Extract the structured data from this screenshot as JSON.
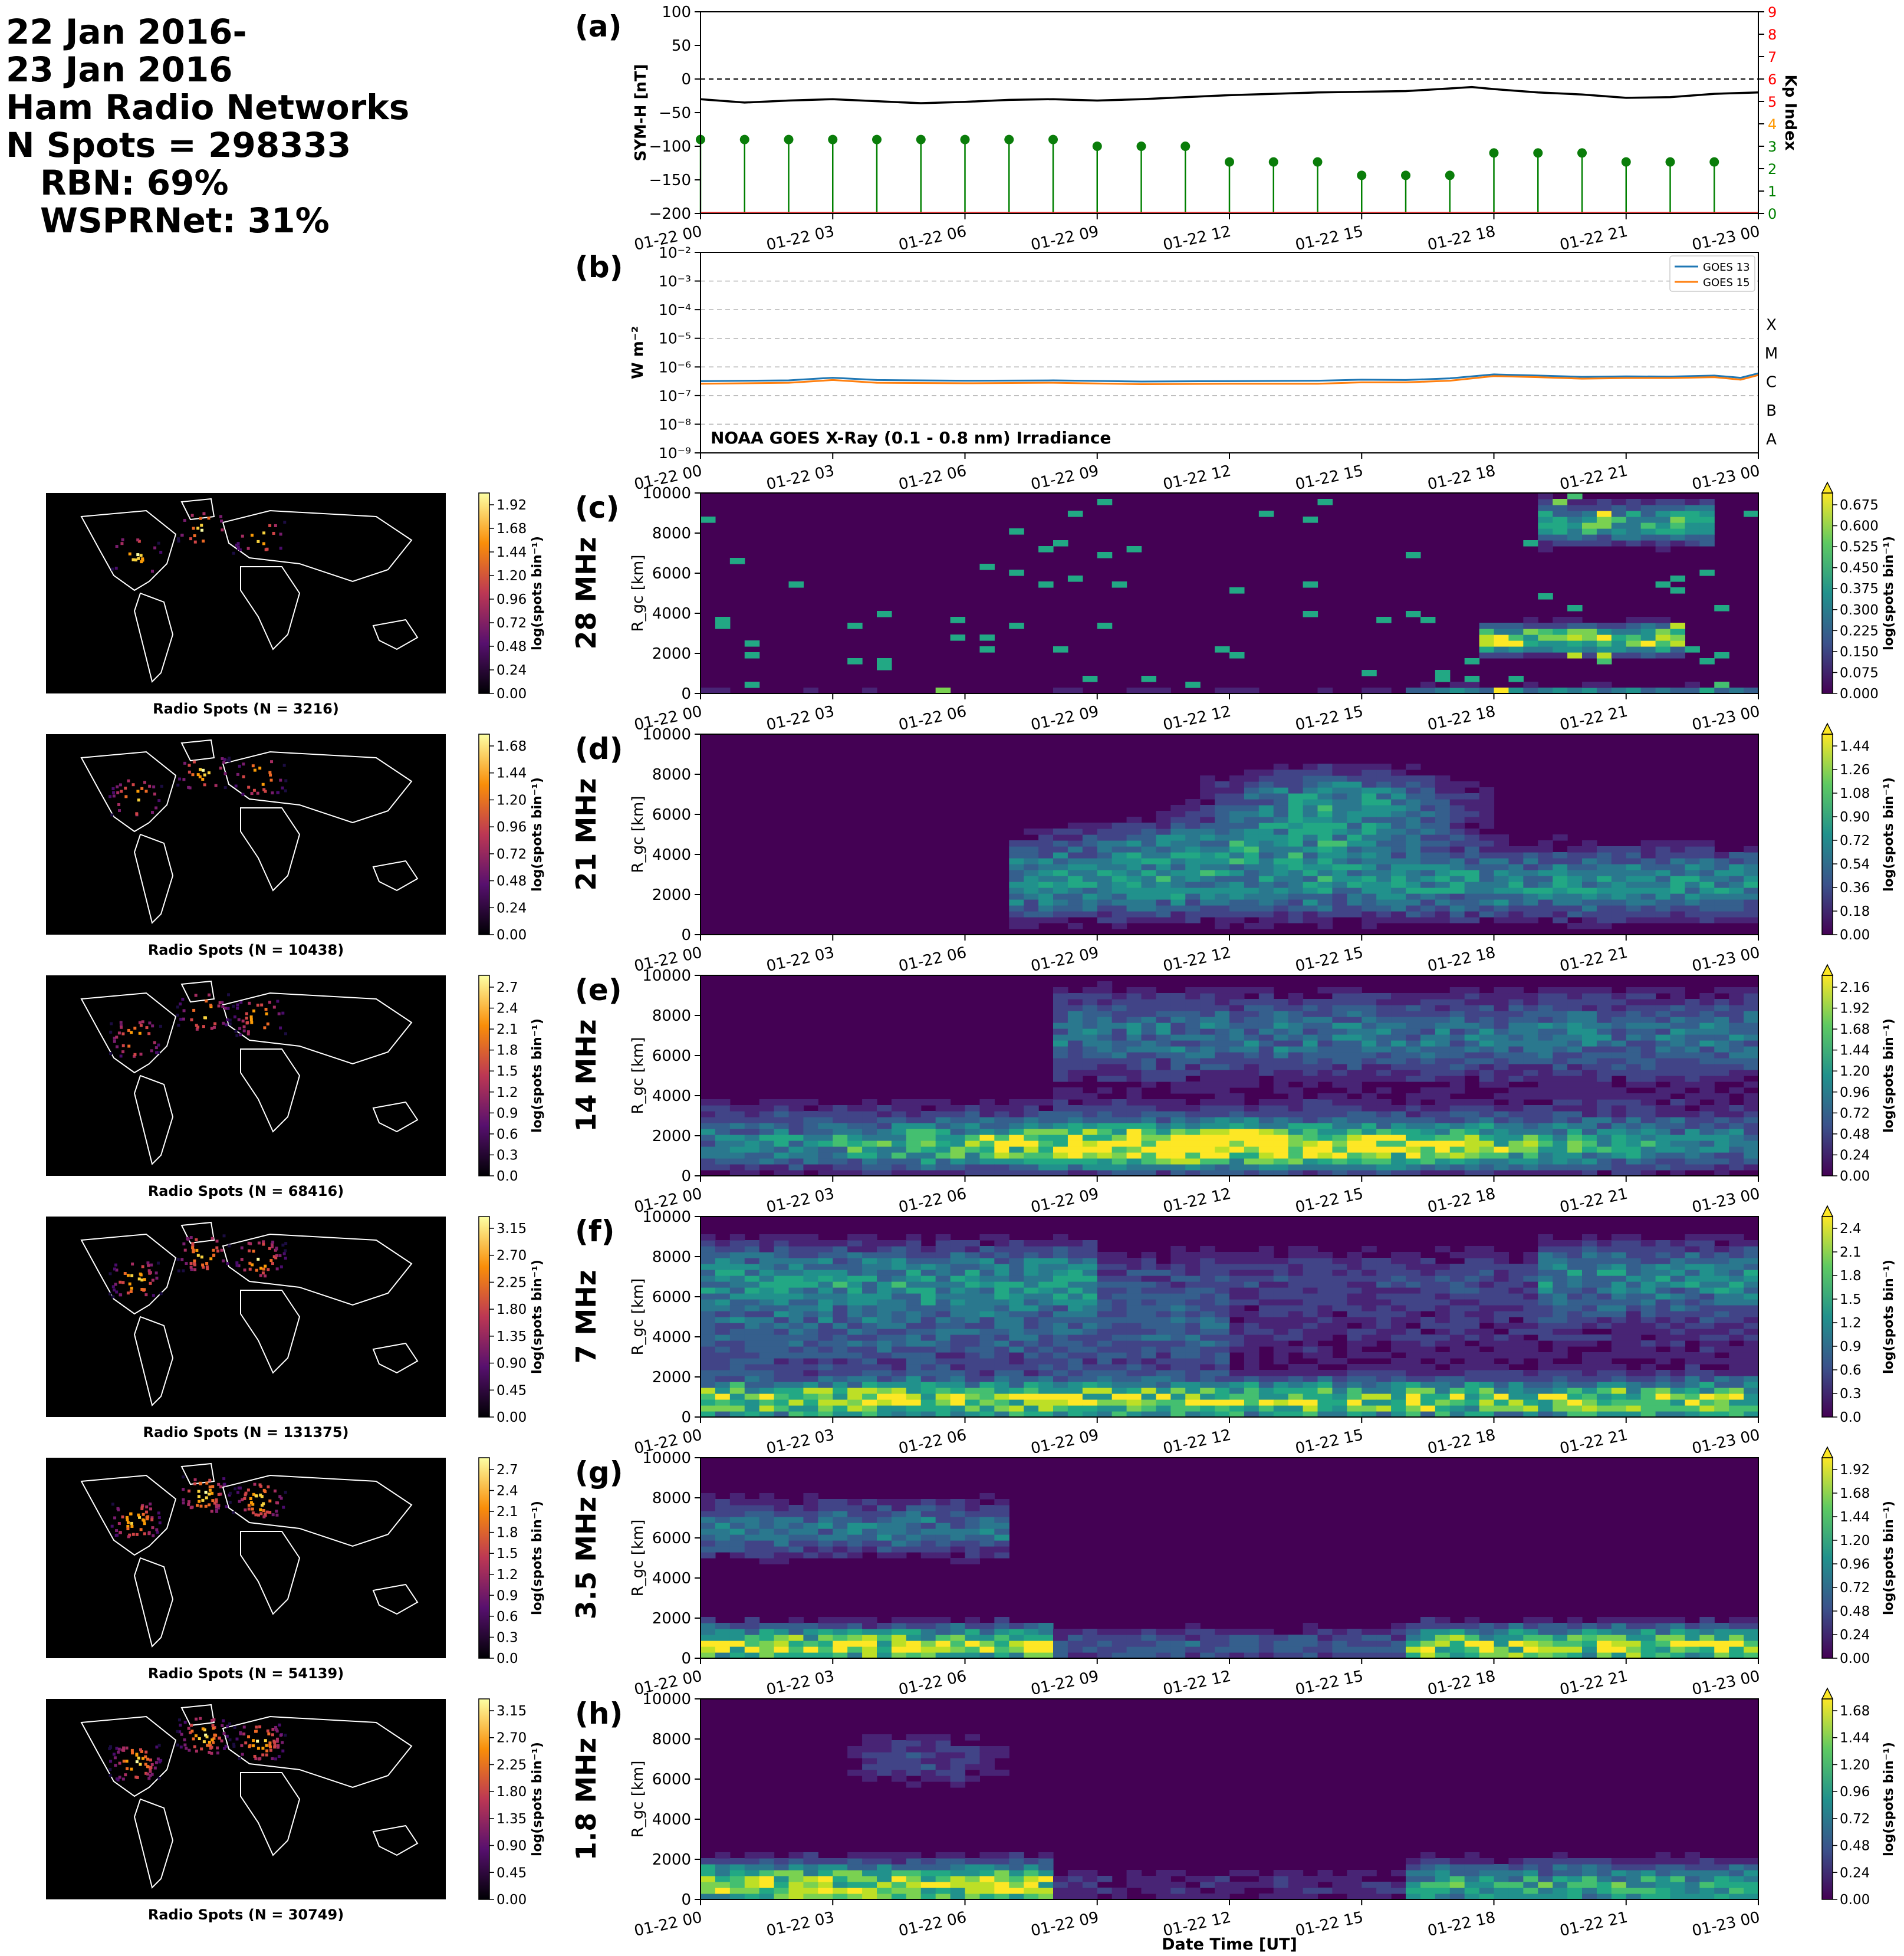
{
  "header": {
    "line1": "22 Jan 2016-",
    "line2": "23 Jan 2016",
    "line3": "Ham Radio Networks",
    "line4": "N Spots = 298333",
    "line5": "RBN: 69%",
    "line6": "WSPRNet: 31%"
  },
  "time_ticks": [
    "01-22 00",
    "01-22 03",
    "01-22 06",
    "01-22 09",
    "01-22 12",
    "01-22 15",
    "01-22 18",
    "01-22 21",
    "01-23 00"
  ],
  "xlabel": "Date Time [UT]",
  "colors": {
    "symh": "#000000",
    "kp_stem": "#008000",
    "kp_marker": "#0a7d0a",
    "goes13": "#1f77b4",
    "goes15": "#ff7f0e",
    "kp_red": "#ff0000",
    "kp_orange": "#ff9900",
    "kp_green": "#008000"
  },
  "chart_data": [
    {
      "type": "line",
      "panel": "(a)",
      "ylabel": "SYM-H [nT]",
      "y2label": "Kp Index",
      "ylim": [
        -200,
        100
      ],
      "yticks": [
        100,
        50,
        0,
        -50,
        -100,
        -150,
        -200
      ],
      "y2lim": [
        0,
        9
      ],
      "y2ticks": [
        0,
        1,
        2,
        3,
        4,
        5,
        6,
        7,
        8,
        9
      ],
      "reference_line": 0,
      "symh": {
        "x_hours": [
          0,
          1,
          2,
          3,
          4,
          5,
          6,
          7,
          8,
          9,
          10,
          11,
          12,
          13,
          14,
          15,
          16,
          17,
          17.5,
          18,
          19,
          20,
          21,
          22,
          23,
          24
        ],
        "values": [
          -30,
          -35,
          -32,
          -30,
          -33,
          -36,
          -34,
          -31,
          -30,
          -32,
          -30,
          -27,
          -24,
          -22,
          -20,
          -19,
          -18,
          -14,
          -12,
          -15,
          -20,
          -23,
          -28,
          -27,
          -22,
          -20
        ]
      },
      "kp": {
        "x_hours": [
          0,
          1,
          2,
          3,
          4,
          5,
          6,
          7,
          8,
          9,
          10,
          11,
          12,
          13,
          14,
          15,
          16,
          17,
          18,
          19,
          20,
          21,
          22,
          23
        ],
        "values": [
          3.3,
          3.3,
          3.3,
          3.3,
          3.3,
          3.3,
          3.3,
          3.3,
          3.3,
          3.0,
          3.0,
          3.0,
          2.3,
          2.3,
          2.3,
          1.7,
          1.7,
          1.7,
          2.7,
          2.7,
          2.7,
          2.3,
          2.3,
          2.3
        ]
      }
    },
    {
      "type": "line",
      "panel": "(b)",
      "ylabel": "W m⁻²",
      "yscale": "log",
      "ylim": [
        1e-09,
        0.01
      ],
      "ytick_labels": [
        "10⁻²",
        "10⁻³",
        "10⁻⁴",
        "10⁻⁵",
        "10⁻⁶",
        "10⁻⁷",
        "10⁻⁸",
        "10⁻⁹"
      ],
      "flare_classes": [
        "X",
        "M",
        "C",
        "B",
        "A"
      ],
      "annotation": "NOAA GOES X-Ray (0.1 - 0.8 nm) Irradiance",
      "series": [
        {
          "name": "GOES 13",
          "x_hours": [
            0,
            2,
            3,
            4,
            6,
            8,
            10,
            12,
            14,
            15,
            16,
            17,
            18,
            19,
            20,
            21,
            22,
            23,
            23.6,
            24
          ],
          "values": [
            3.2e-07,
            3.4e-07,
            4.2e-07,
            3.5e-07,
            3.3e-07,
            3.4e-07,
            3.1e-07,
            3.2e-07,
            3.3e-07,
            3.6e-07,
            3.5e-07,
            4e-07,
            5.5e-07,
            5e-07,
            4.5e-07,
            4.7e-07,
            4.6e-07,
            5e-07,
            4.2e-07,
            6e-07
          ]
        },
        {
          "name": "GOES 15",
          "x_hours": [
            0,
            2,
            3,
            4,
            6,
            8,
            10,
            12,
            14,
            15,
            16,
            17,
            18,
            19,
            20,
            21,
            22,
            23,
            23.6,
            24
          ],
          "values": [
            2.6e-07,
            2.8e-07,
            3.5e-07,
            2.8e-07,
            2.7e-07,
            2.8e-07,
            2.5e-07,
            2.6e-07,
            2.6e-07,
            2.9e-07,
            2.9e-07,
            3.3e-07,
            4.8e-07,
            4.4e-07,
            3.9e-07,
            4.1e-07,
            4.1e-07,
            4.4e-07,
            3.6e-07,
            5.2e-07
          ]
        }
      ]
    },
    {
      "type": "heatmap",
      "panel": "(c)",
      "band": "28 MHz",
      "ylabel": "R_gc [km]",
      "map_caption": "Radio Spots (N = 3216)",
      "cbar_label": "log(spots bin⁻¹)",
      "cbar_ticks": [
        "0.000",
        "0.075",
        "0.150",
        "0.225",
        "0.300",
        "0.375",
        "0.450",
        "0.525",
        "0.600",
        "0.675"
      ],
      "map_cbar_ticks": [
        "0.00",
        "0.24",
        "0.48",
        "0.72",
        "0.96",
        "1.20",
        "1.44",
        "1.68",
        "1.92"
      ]
    },
    {
      "type": "heatmap",
      "panel": "(d)",
      "band": "21 MHz",
      "ylabel": "R_gc [km]",
      "map_caption": "Radio Spots (N = 10438)",
      "cbar_label": "log(spots bin⁻¹)",
      "cbar_ticks": [
        "0.00",
        "0.18",
        "0.36",
        "0.54",
        "0.72",
        "0.90",
        "1.08",
        "1.26",
        "1.44"
      ],
      "map_cbar_ticks": [
        "0.00",
        "0.24",
        "0.48",
        "0.72",
        "0.96",
        "1.20",
        "1.44",
        "1.68"
      ]
    },
    {
      "type": "heatmap",
      "panel": "(e)",
      "band": "14 MHz",
      "ylabel": "R_gc [km]",
      "map_caption": "Radio Spots (N = 68416)",
      "cbar_label": "log(spots bin⁻¹)",
      "cbar_ticks": [
        "0.00",
        "0.24",
        "0.48",
        "0.72",
        "0.96",
        "1.20",
        "1.44",
        "1.68",
        "1.92",
        "2.16"
      ],
      "map_cbar_ticks": [
        "0.0",
        "0.3",
        "0.6",
        "0.9",
        "1.2",
        "1.5",
        "1.8",
        "2.1",
        "2.4",
        "2.7"
      ]
    },
    {
      "type": "heatmap",
      "panel": "(f)",
      "band": "7 MHz",
      "ylabel": "R_gc [km]",
      "map_caption": "Radio Spots (N = 131375)",
      "cbar_label": "log(spots bin⁻¹)",
      "cbar_ticks": [
        "0.0",
        "0.3",
        "0.6",
        "0.9",
        "1.2",
        "1.5",
        "1.8",
        "2.1",
        "2.4"
      ],
      "map_cbar_ticks": [
        "0.00",
        "0.45",
        "0.90",
        "1.35",
        "1.80",
        "2.25",
        "2.70",
        "3.15"
      ]
    },
    {
      "type": "heatmap",
      "panel": "(g)",
      "band": "3.5 MHz",
      "ylabel": "R_gc [km]",
      "map_caption": "Radio Spots (N = 54139)",
      "cbar_label": "log(spots bin⁻¹)",
      "cbar_ticks": [
        "0.00",
        "0.24",
        "0.48",
        "0.72",
        "0.96",
        "1.20",
        "1.44",
        "1.68",
        "1.92"
      ],
      "map_cbar_ticks": [
        "0.0",
        "0.3",
        "0.6",
        "0.9",
        "1.2",
        "1.5",
        "1.8",
        "2.1",
        "2.4",
        "2.7"
      ]
    },
    {
      "type": "heatmap",
      "panel": "(h)",
      "band": "1.8 MHz",
      "ylabel": "R_gc [km]",
      "map_caption": "Radio Spots (N = 30749)",
      "cbar_label": "log(spots bin⁻¹)",
      "cbar_ticks": [
        "0.00",
        "0.24",
        "0.48",
        "0.72",
        "0.96",
        "1.20",
        "1.44",
        "1.68"
      ],
      "map_cbar_ticks": [
        "0.00",
        "0.45",
        "0.90",
        "1.35",
        "1.80",
        "2.25",
        "2.70",
        "3.15"
      ]
    }
  ],
  "heat_yticks": [
    "0",
    "2000",
    "4000",
    "6000",
    "8000",
    "10000"
  ],
  "symh_ytick_labels": [
    "100",
    "50",
    "0",
    "−50",
    "−100",
    "−150",
    "−200"
  ]
}
